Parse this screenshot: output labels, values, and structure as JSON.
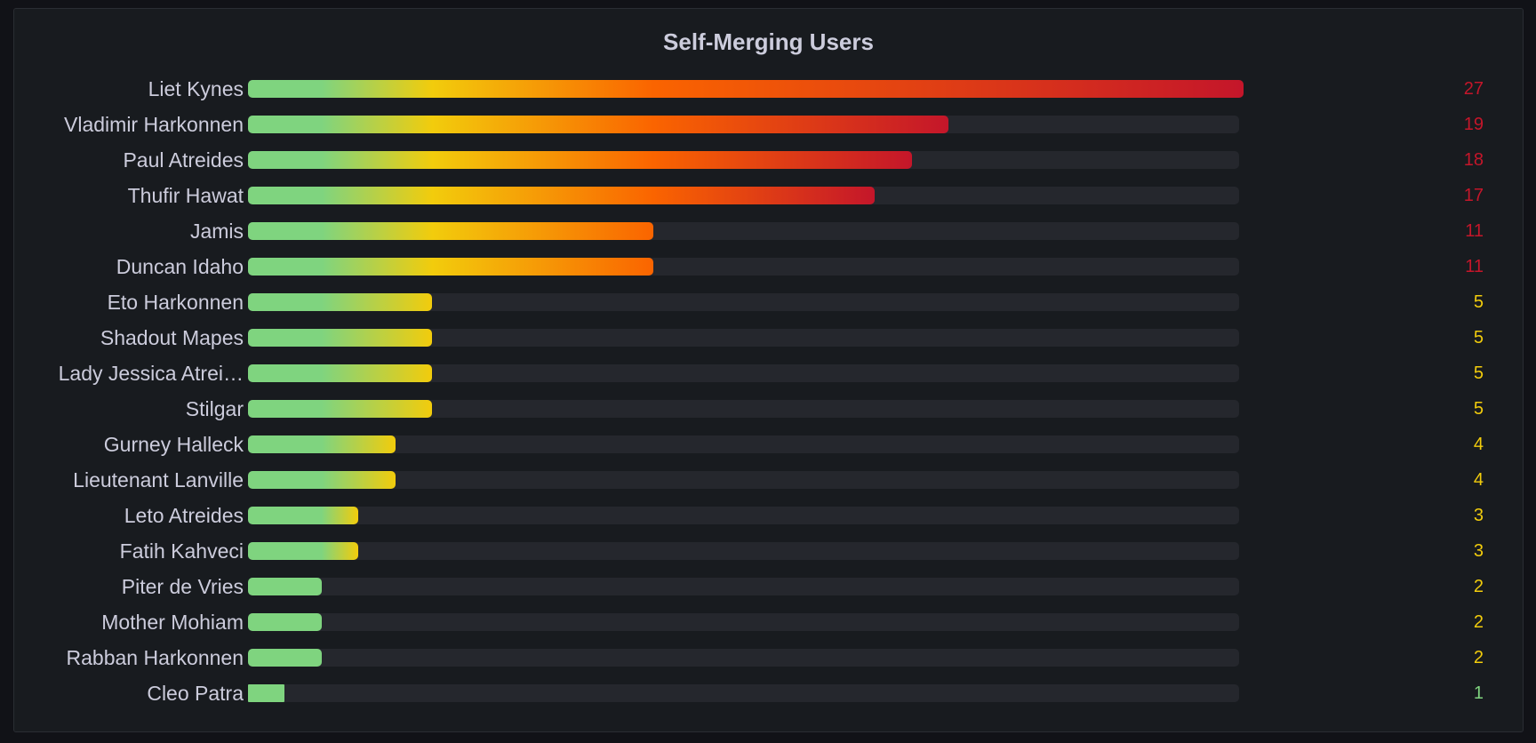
{
  "panel": {
    "title": "Self-Merging Users"
  },
  "colors": {
    "background": "#111217",
    "panel": "#181b1f",
    "track": "#25272d",
    "green": "#7fd47f",
    "yellow": "#f2cc0c",
    "orange": "#fa6400",
    "red": "#c4162a"
  },
  "chart_data": {
    "type": "bar",
    "orientation": "horizontal",
    "title": "Self-Merging Users",
    "xlim": [
      0,
      27
    ],
    "categories": [
      "Liet Kynes",
      "Vladimir Harkonnen",
      "Paul Atreides",
      "Thufir Hawat",
      "Jamis",
      "Duncan Idaho",
      "Eto Harkonnen",
      "Shadout Mapes",
      "Lady Jessica Atrei…",
      "Stilgar",
      "Gurney Halleck",
      "Lieutenant Lanville",
      "Leto Atreides",
      "Fatih Kahveci",
      "Piter de Vries",
      "Mother Mohiam",
      "Rabban Harkonnen",
      "Cleo Patra"
    ],
    "values": [
      27,
      19,
      18,
      17,
      11,
      11,
      5,
      5,
      5,
      5,
      4,
      4,
      3,
      3,
      2,
      2,
      2,
      1
    ],
    "thresholds": [
      {
        "from": 0,
        "color": "#7fd47f"
      },
      {
        "from": 2,
        "color": "#f2cc0c"
      },
      {
        "from": 10,
        "color": "#c4162a"
      }
    ]
  }
}
